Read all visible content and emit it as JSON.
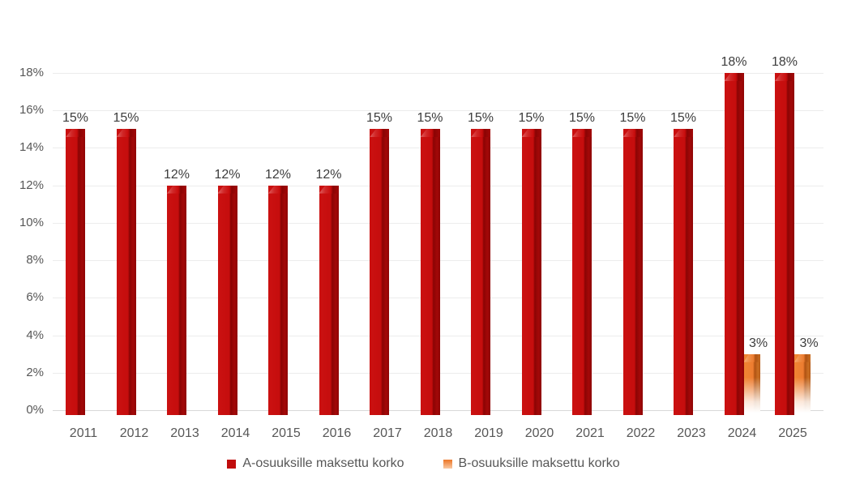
{
  "chart_data": {
    "type": "bar",
    "title": "",
    "xlabel": "",
    "ylabel": "",
    "categories": [
      "2011",
      "2012",
      "2013",
      "2014",
      "2015",
      "2016",
      "2017",
      "2018",
      "2019",
      "2020",
      "2021",
      "2022",
      "2023",
      "2024",
      "2025"
    ],
    "series": [
      {
        "name": "A-osuuksille maksettu korko",
        "color": "#c50d0d",
        "values": [
          15,
          15,
          12,
          12,
          12,
          12,
          15,
          15,
          15,
          15,
          15,
          15,
          15,
          18,
          18
        ],
        "data_labels": [
          "15%",
          "15%",
          "12%",
          "12%",
          "12%",
          "12%",
          "15%",
          "15%",
          "15%",
          "15%",
          "15%",
          "15%",
          "15%",
          "18%",
          "18%"
        ]
      },
      {
        "name": "B-osuuksille maksettu korko",
        "color": "#ed7d31",
        "values": [
          null,
          null,
          null,
          null,
          null,
          null,
          null,
          null,
          null,
          null,
          null,
          null,
          null,
          3,
          3
        ],
        "data_labels": [
          null,
          null,
          null,
          null,
          null,
          null,
          null,
          null,
          null,
          null,
          null,
          null,
          null,
          "3%",
          "3%"
        ]
      }
    ],
    "ylim": [
      0,
      18
    ],
    "ytick_step": 2,
    "ytick_labels": [
      "0%",
      "2%",
      "4%",
      "6%",
      "8%",
      "10%",
      "12%",
      "14%",
      "16%",
      "18%"
    ],
    "grid": true,
    "legend_position": "bottom"
  }
}
